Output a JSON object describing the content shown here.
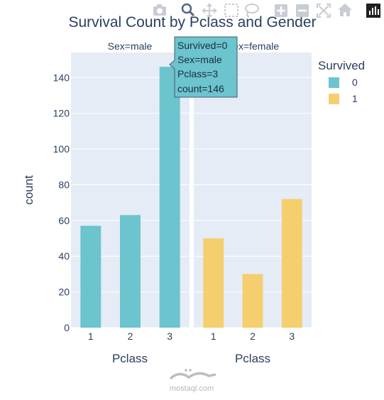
{
  "colors": {
    "survived_0": "#6bc4ce",
    "survived_1": "#f5cf6e",
    "plot_bg": "#e5ecf6",
    "grid": "#ffffff",
    "text": "#2a3f5f",
    "tooltip_bg": "#6bc4ce"
  },
  "toolbar": {
    "icons": [
      "camera-icon",
      "zoom-icon",
      "pan-icon",
      "box-select-icon",
      "lasso-select-icon",
      "zoom-in-icon",
      "zoom-out-icon",
      "autoscale-icon",
      "reset-axes-icon",
      "plotly-logo-icon"
    ]
  },
  "chart_data": {
    "type": "bar",
    "title": "Survival Count by Pclass and Gender",
    "ylabel": "count",
    "ylim": [
      0,
      154
    ],
    "yticks": [
      0,
      20,
      40,
      60,
      80,
      100,
      120,
      140
    ],
    "grid": true,
    "legend": {
      "title": "Survived",
      "placement": "top-right",
      "items": [
        {
          "label": "0",
          "color": "#6bc4ce"
        },
        {
          "label": "1",
          "color": "#f5cf6e"
        }
      ]
    },
    "facets": [
      {
        "label": "Sex=male",
        "xlabel": "Pclass",
        "categories": [
          "1",
          "2",
          "3"
        ],
        "series": [
          {
            "name": "0",
            "values": [
              57,
              63,
              146
            ]
          },
          {
            "name": "1",
            "values": [
              null,
              null,
              null
            ]
          }
        ]
      },
      {
        "label": "Sex=female",
        "xlabel": "Pclass",
        "categories": [
          "1",
          "2",
          "3"
        ],
        "series": [
          {
            "name": "0",
            "values": [
              null,
              null,
              null
            ]
          },
          {
            "name": "1",
            "values": [
              50,
              30,
              72
            ]
          }
        ]
      }
    ],
    "tooltip": {
      "lines": [
        "Survived=0",
        "Sex=male",
        "Pclass=3",
        "count=146"
      ]
    }
  },
  "watermark": {
    "text": "mostaql.com"
  }
}
